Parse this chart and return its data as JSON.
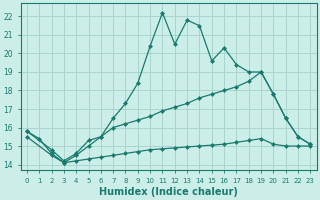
{
  "xlabel": "Humidex (Indice chaleur)",
  "background_color": "#cceee8",
  "grid_color": "#aad4ce",
  "line_color": "#1a7a6e",
  "xlim": [
    -0.5,
    23.5
  ],
  "ylim": [
    13.7,
    22.7
  ],
  "xticks": [
    0,
    1,
    2,
    3,
    4,
    5,
    6,
    7,
    8,
    9,
    10,
    11,
    12,
    13,
    14,
    15,
    16,
    17,
    18,
    19,
    20,
    21,
    22,
    23
  ],
  "yticks": [
    14,
    15,
    16,
    17,
    18,
    19,
    20,
    21,
    22
  ],
  "line1_x": [
    0,
    1,
    2,
    3,
    4,
    5,
    6,
    7,
    8,
    9,
    10,
    11,
    12,
    13,
    14,
    15,
    16,
    17,
    18,
    19,
    20,
    21,
    22,
    23
  ],
  "line1_y": [
    15.8,
    15.4,
    14.6,
    14.1,
    14.5,
    15.0,
    15.5,
    16.5,
    17.3,
    18.4,
    20.4,
    22.2,
    20.5,
    21.8,
    21.5,
    19.6,
    20.3,
    19.4,
    19.0,
    19.0,
    17.8,
    16.5,
    15.5,
    15.1
  ],
  "line2_x": [
    0,
    2,
    3,
    4,
    5,
    6,
    7,
    8,
    9,
    10,
    11,
    12,
    13,
    14,
    15,
    16,
    17,
    18,
    19,
    20,
    21,
    22,
    23
  ],
  "line2_y": [
    15.8,
    14.8,
    14.2,
    14.6,
    15.3,
    15.5,
    16.0,
    16.2,
    16.4,
    16.6,
    16.9,
    17.1,
    17.3,
    17.6,
    17.8,
    18.0,
    18.2,
    18.5,
    19.0,
    17.8,
    16.5,
    15.5,
    15.1
  ],
  "line3_x": [
    0,
    2,
    3,
    4,
    5,
    6,
    7,
    8,
    9,
    10,
    11,
    12,
    13,
    14,
    15,
    16,
    17,
    18,
    19,
    20,
    21,
    22,
    23
  ],
  "line3_y": [
    15.5,
    14.5,
    14.1,
    14.2,
    14.3,
    14.4,
    14.5,
    14.6,
    14.7,
    14.8,
    14.85,
    14.9,
    14.95,
    15.0,
    15.05,
    15.1,
    15.2,
    15.3,
    15.4,
    15.1,
    15.0,
    15.0,
    15.0
  ]
}
